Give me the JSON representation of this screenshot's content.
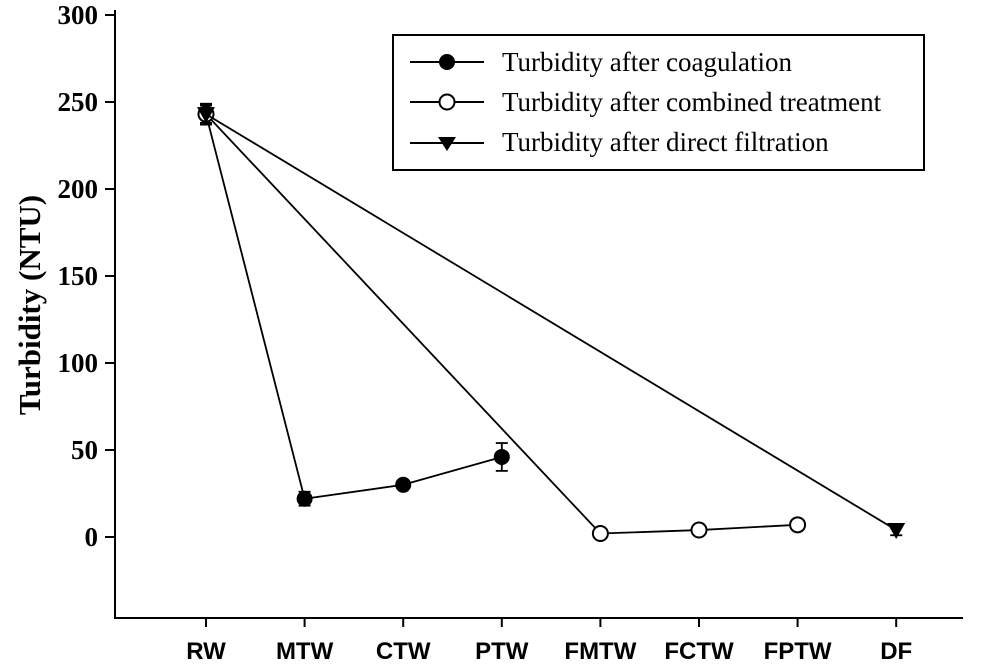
{
  "chart_data": {
    "type": "line",
    "categories": [
      "RW",
      "MTW",
      "CTW",
      "PTW",
      "FMTW",
      "FCTW",
      "FPTW",
      "DF"
    ],
    "series": [
      {
        "name": "Turbidity after coagulation",
        "marker": "filled-circle",
        "points": [
          {
            "x": "RW",
            "y": 243,
            "err": 6
          },
          {
            "x": "MTW",
            "y": 22,
            "err": 4
          },
          {
            "x": "CTW",
            "y": 30,
            "err": 2
          },
          {
            "x": "PTW",
            "y": 46,
            "err": 8
          }
        ]
      },
      {
        "name": "Turbidity after combined treatment",
        "marker": "open-circle",
        "points": [
          {
            "x": "RW",
            "y": 243,
            "err": 5
          },
          {
            "x": "FMTW",
            "y": 2,
            "err": 1
          },
          {
            "x": "FCTW",
            "y": 4,
            "err": 1
          },
          {
            "x": "FPTW",
            "y": 7,
            "err": 1.5
          }
        ]
      },
      {
        "name": "Turbidity after direct filtration",
        "marker": "filled-triangle-down",
        "points": [
          {
            "x": "RW",
            "y": 243,
            "err": 5
          },
          {
            "x": "DF",
            "y": 4,
            "err": 3
          }
        ]
      }
    ],
    "title": "",
    "xlabel": "",
    "ylabel": "Turbidity (NTU)",
    "yticks": [
      0,
      50,
      100,
      150,
      200,
      250,
      300
    ],
    "ylim": [
      -47,
      300
    ],
    "grid": false,
    "legend_position": "top-center",
    "colors": {
      "foreground": "#000000",
      "background": "#ffffff"
    }
  }
}
